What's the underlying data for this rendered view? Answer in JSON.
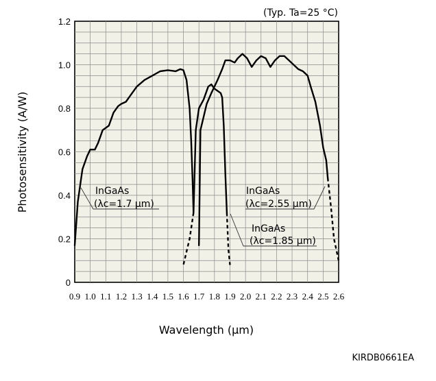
{
  "chart_data": {
    "type": "line",
    "condition": "(Typ. Ta=25 °C)",
    "xlabel": "Wavelength (μm)",
    "ylabel": "Photosensitivity (A/W)",
    "figure_code": "KIRDB0661EA",
    "xlim": [
      0.9,
      2.6
    ],
    "ylim": [
      0,
      1.2
    ],
    "x_ticks": [
      "0.9",
      "1.0",
      "1.1",
      "1.2",
      "1.3",
      "1.4",
      "1.5",
      "1.6",
      "1.7",
      "1.8",
      "1.9",
      "2.0",
      "2.1",
      "2.2",
      "2.3",
      "2.4",
      "2.5",
      "2.6"
    ],
    "y_ticks": [
      "0",
      "0.2",
      "0.4",
      "0.6",
      "0.8",
      "1.0",
      "1.2"
    ],
    "grid": true,
    "background": "#f2f1e8",
    "series": [
      {
        "name": "InGaAs (λc=1.7 μm)",
        "solid": [
          [
            0.9,
            0.17
          ],
          [
            0.92,
            0.37
          ],
          [
            0.95,
            0.52
          ],
          [
            0.98,
            0.58
          ],
          [
            1.0,
            0.61
          ],
          [
            1.03,
            0.61
          ],
          [
            1.05,
            0.64
          ],
          [
            1.08,
            0.7
          ],
          [
            1.1,
            0.71
          ],
          [
            1.12,
            0.72
          ],
          [
            1.15,
            0.78
          ],
          [
            1.18,
            0.81
          ],
          [
            1.2,
            0.82
          ],
          [
            1.23,
            0.83
          ],
          [
            1.26,
            0.86
          ],
          [
            1.3,
            0.9
          ],
          [
            1.35,
            0.93
          ],
          [
            1.4,
            0.95
          ],
          [
            1.45,
            0.97
          ],
          [
            1.5,
            0.975
          ],
          [
            1.55,
            0.97
          ],
          [
            1.58,
            0.98
          ],
          [
            1.6,
            0.975
          ],
          [
            1.62,
            0.93
          ],
          [
            1.64,
            0.8
          ],
          [
            1.65,
            0.65
          ],
          [
            1.66,
            0.45
          ],
          [
            1.665,
            0.32
          ]
        ],
        "dashed": [
          [
            1.665,
            0.32
          ],
          [
            1.64,
            0.2
          ],
          [
            1.63,
            0.17
          ],
          [
            1.6,
            0.08
          ]
        ]
      },
      {
        "name": "InGaAs (λc=1.85 μm)",
        "solid": [
          [
            1.665,
            0.32
          ],
          [
            1.68,
            0.7
          ],
          [
            1.7,
            0.8
          ],
          [
            1.73,
            0.84
          ],
          [
            1.76,
            0.9
          ],
          [
            1.78,
            0.91
          ],
          [
            1.8,
            0.89
          ],
          [
            1.82,
            0.88
          ],
          [
            1.84,
            0.87
          ],
          [
            1.85,
            0.85
          ],
          [
            1.86,
            0.72
          ],
          [
            1.87,
            0.5
          ],
          [
            1.88,
            0.32
          ]
        ],
        "dashed": [
          [
            1.88,
            0.32
          ],
          [
            1.89,
            0.15
          ],
          [
            1.9,
            0.08
          ]
        ]
      },
      {
        "name": "InGaAs (λc=2.55 μm)",
        "solid": [
          [
            1.7,
            0.17
          ],
          [
            1.71,
            0.7
          ],
          [
            1.73,
            0.76
          ],
          [
            1.75,
            0.82
          ],
          [
            1.78,
            0.87
          ],
          [
            1.82,
            0.93
          ],
          [
            1.85,
            0.98
          ],
          [
            1.87,
            1.02
          ],
          [
            1.9,
            1.02
          ],
          [
            1.93,
            1.01
          ],
          [
            1.95,
            1.03
          ],
          [
            1.98,
            1.05
          ],
          [
            2.01,
            1.03
          ],
          [
            2.04,
            0.99
          ],
          [
            2.07,
            1.02
          ],
          [
            2.1,
            1.04
          ],
          [
            2.13,
            1.03
          ],
          [
            2.16,
            0.99
          ],
          [
            2.19,
            1.02
          ],
          [
            2.22,
            1.04
          ],
          [
            2.25,
            1.04
          ],
          [
            2.28,
            1.02
          ],
          [
            2.31,
            1.0
          ],
          [
            2.34,
            0.98
          ],
          [
            2.37,
            0.97
          ],
          [
            2.4,
            0.95
          ],
          [
            2.42,
            0.9
          ],
          [
            2.45,
            0.83
          ],
          [
            2.48,
            0.72
          ],
          [
            2.5,
            0.62
          ],
          [
            2.52,
            0.56
          ],
          [
            2.53,
            0.48
          ]
        ],
        "dashed": [
          [
            2.53,
            0.48
          ],
          [
            2.55,
            0.35
          ],
          [
            2.57,
            0.2
          ],
          [
            2.6,
            0.1
          ]
        ]
      }
    ],
    "annotations": [
      {
        "line1": "InGaAs",
        "line2": "(λc=1.7 μm)"
      },
      {
        "line1": "InGaAs",
        "line2": "(λc=2.55 μm)"
      },
      {
        "line1": "InGaAs",
        "line2": "(λc=1.85 μm)"
      }
    ]
  }
}
